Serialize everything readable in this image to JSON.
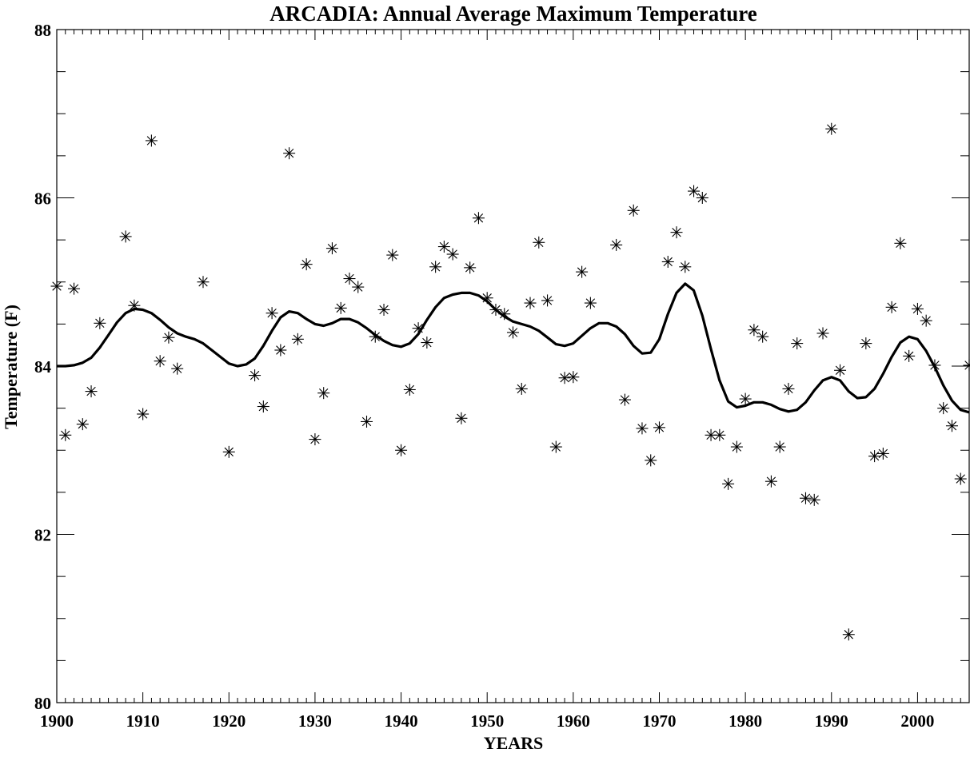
{
  "chart_data": {
    "type": "scatter",
    "title": "ARCADIA: Annual Average Maximum Temperature",
    "xlabel": "YEARS",
    "ylabel": "Temperature (F)",
    "xlim": [
      1900,
      2006
    ],
    "ylim": [
      80,
      88
    ],
    "x_ticks": [
      "1900",
      "1910",
      "1920",
      "1930",
      "1940",
      "1950",
      "1960",
      "1970",
      "1980",
      "1990",
      "2000"
    ],
    "y_ticks": [
      "80",
      "82",
      "84",
      "86",
      "88"
    ],
    "grid": false,
    "legend": "none",
    "marker": "asterisk",
    "series": [
      {
        "kind": "scatter",
        "points": [
          [
            1900,
            84.95
          ],
          [
            1901,
            83.18
          ],
          [
            1902,
            84.92
          ],
          [
            1903,
            83.31
          ],
          [
            1904,
            83.7
          ],
          [
            1905,
            84.51
          ],
          [
            1908,
            85.54
          ],
          [
            1909,
            84.72
          ],
          [
            1910,
            83.43
          ],
          [
            1911,
            86.68
          ],
          [
            1912,
            84.06
          ],
          [
            1913,
            84.34
          ],
          [
            1914,
            83.97
          ],
          [
            1917,
            85.0
          ],
          [
            1920,
            82.98
          ],
          [
            1923,
            83.89
          ],
          [
            1924,
            83.52
          ],
          [
            1925,
            84.63
          ],
          [
            1926,
            84.19
          ],
          [
            1927,
            86.53
          ],
          [
            1928,
            84.32
          ],
          [
            1929,
            85.21
          ],
          [
            1930,
            83.13
          ],
          [
            1931,
            83.68
          ],
          [
            1932,
            85.4
          ],
          [
            1933,
            84.69
          ],
          [
            1934,
            85.04
          ],
          [
            1935,
            84.94
          ],
          [
            1936,
            83.34
          ],
          [
            1937,
            84.35
          ],
          [
            1938,
            84.67
          ],
          [
            1939,
            85.32
          ],
          [
            1940,
            83.0
          ],
          [
            1941,
            83.72
          ],
          [
            1942,
            84.45
          ],
          [
            1943,
            84.28
          ],
          [
            1944,
            85.18
          ],
          [
            1945,
            85.42
          ],
          [
            1946,
            85.33
          ],
          [
            1947,
            83.38
          ],
          [
            1948,
            85.17
          ],
          [
            1949,
            85.76
          ],
          [
            1950,
            84.81
          ],
          [
            1951,
            84.67
          ],
          [
            1952,
            84.62
          ],
          [
            1953,
            84.4
          ],
          [
            1954,
            83.73
          ],
          [
            1955,
            84.75
          ],
          [
            1956,
            85.47
          ],
          [
            1957,
            84.78
          ],
          [
            1958,
            83.04
          ],
          [
            1959,
            83.86
          ],
          [
            1960,
            83.87
          ],
          [
            1961,
            85.12
          ],
          [
            1962,
            84.75
          ],
          [
            1965,
            85.44
          ],
          [
            1966,
            83.6
          ],
          [
            1967,
            85.85
          ],
          [
            1968,
            83.26
          ],
          [
            1969,
            82.88
          ],
          [
            1970,
            83.27
          ],
          [
            1971,
            85.24
          ],
          [
            1972,
            85.59
          ],
          [
            1973,
            85.18
          ],
          [
            1974,
            86.08
          ],
          [
            1975,
            86.0
          ],
          [
            1976,
            83.18
          ],
          [
            1977,
            83.18
          ],
          [
            1978,
            82.6
          ],
          [
            1979,
            83.04
          ],
          [
            1980,
            83.61
          ],
          [
            1981,
            84.43
          ],
          [
            1982,
            84.35
          ],
          [
            1983,
            82.63
          ],
          [
            1984,
            83.04
          ],
          [
            1985,
            83.73
          ],
          [
            1986,
            84.27
          ],
          [
            1987,
            82.43
          ],
          [
            1988,
            82.41
          ],
          [
            1989,
            84.39
          ],
          [
            1990,
            86.82
          ],
          [
            1991,
            83.95
          ],
          [
            1992,
            80.81
          ],
          [
            1994,
            84.27
          ],
          [
            1995,
            82.93
          ],
          [
            1996,
            82.96
          ],
          [
            1997,
            84.7
          ],
          [
            1998,
            85.46
          ],
          [
            1999,
            84.12
          ],
          [
            2000,
            84.68
          ],
          [
            2001,
            84.54
          ],
          [
            2002,
            84.01
          ],
          [
            2003,
            83.5
          ],
          [
            2004,
            83.29
          ],
          [
            2005,
            82.66
          ],
          [
            2006,
            84.01
          ]
        ]
      },
      {
        "kind": "smoothed-line",
        "points": [
          [
            1900,
            84.0
          ],
          [
            1901,
            84.0
          ],
          [
            1902,
            84.01
          ],
          [
            1903,
            84.04
          ],
          [
            1904,
            84.1
          ],
          [
            1905,
            84.22
          ],
          [
            1906,
            84.37
          ],
          [
            1907,
            84.52
          ],
          [
            1908,
            84.63
          ],
          [
            1909,
            84.68
          ],
          [
            1910,
            84.67
          ],
          [
            1911,
            84.63
          ],
          [
            1912,
            84.55
          ],
          [
            1913,
            84.46
          ],
          [
            1914,
            84.39
          ],
          [
            1915,
            84.35
          ],
          [
            1916,
            84.32
          ],
          [
            1917,
            84.27
          ],
          [
            1918,
            84.19
          ],
          [
            1919,
            84.11
          ],
          [
            1920,
            84.03
          ],
          [
            1921,
            84.0
          ],
          [
            1922,
            84.02
          ],
          [
            1923,
            84.09
          ],
          [
            1924,
            84.24
          ],
          [
            1925,
            84.42
          ],
          [
            1926,
            84.58
          ],
          [
            1927,
            84.65
          ],
          [
            1928,
            84.63
          ],
          [
            1929,
            84.56
          ],
          [
            1930,
            84.5
          ],
          [
            1931,
            84.48
          ],
          [
            1932,
            84.51
          ],
          [
            1933,
            84.56
          ],
          [
            1934,
            84.56
          ],
          [
            1935,
            84.52
          ],
          [
            1936,
            84.45
          ],
          [
            1937,
            84.37
          ],
          [
            1938,
            84.3
          ],
          [
            1939,
            84.25
          ],
          [
            1940,
            84.23
          ],
          [
            1941,
            84.27
          ],
          [
            1942,
            84.38
          ],
          [
            1943,
            84.55
          ],
          [
            1944,
            84.7
          ],
          [
            1945,
            84.81
          ],
          [
            1946,
            84.85
          ],
          [
            1947,
            84.87
          ],
          [
            1948,
            84.87
          ],
          [
            1949,
            84.84
          ],
          [
            1950,
            84.77
          ],
          [
            1951,
            84.67
          ],
          [
            1952,
            84.59
          ],
          [
            1953,
            84.53
          ],
          [
            1954,
            84.5
          ],
          [
            1955,
            84.47
          ],
          [
            1956,
            84.42
          ],
          [
            1957,
            84.34
          ],
          [
            1958,
            84.26
          ],
          [
            1959,
            84.24
          ],
          [
            1960,
            84.27
          ],
          [
            1961,
            84.36
          ],
          [
            1962,
            84.45
          ],
          [
            1963,
            84.51
          ],
          [
            1964,
            84.51
          ],
          [
            1965,
            84.47
          ],
          [
            1966,
            84.38
          ],
          [
            1967,
            84.24
          ],
          [
            1968,
            84.15
          ],
          [
            1969,
            84.16
          ],
          [
            1970,
            84.32
          ],
          [
            1971,
            84.62
          ],
          [
            1972,
            84.87
          ],
          [
            1973,
            84.98
          ],
          [
            1974,
            84.9
          ],
          [
            1975,
            84.6
          ],
          [
            1976,
            84.2
          ],
          [
            1977,
            83.83
          ],
          [
            1978,
            83.58
          ],
          [
            1979,
            83.51
          ],
          [
            1980,
            83.53
          ],
          [
            1981,
            83.57
          ],
          [
            1982,
            83.57
          ],
          [
            1983,
            83.54
          ],
          [
            1984,
            83.49
          ],
          [
            1985,
            83.46
          ],
          [
            1986,
            83.48
          ],
          [
            1987,
            83.57
          ],
          [
            1988,
            83.71
          ],
          [
            1989,
            83.83
          ],
          [
            1990,
            83.87
          ],
          [
            1991,
            83.83
          ],
          [
            1992,
            83.7
          ],
          [
            1993,
            83.62
          ],
          [
            1994,
            83.63
          ],
          [
            1995,
            83.73
          ],
          [
            1996,
            83.91
          ],
          [
            1997,
            84.11
          ],
          [
            1998,
            84.28
          ],
          [
            1999,
            84.35
          ],
          [
            2000,
            84.32
          ],
          [
            2001,
            84.18
          ],
          [
            2002,
            83.99
          ],
          [
            2003,
            83.77
          ],
          [
            2004,
            83.59
          ],
          [
            2005,
            83.48
          ],
          [
            2006,
            83.45
          ]
        ]
      }
    ]
  }
}
